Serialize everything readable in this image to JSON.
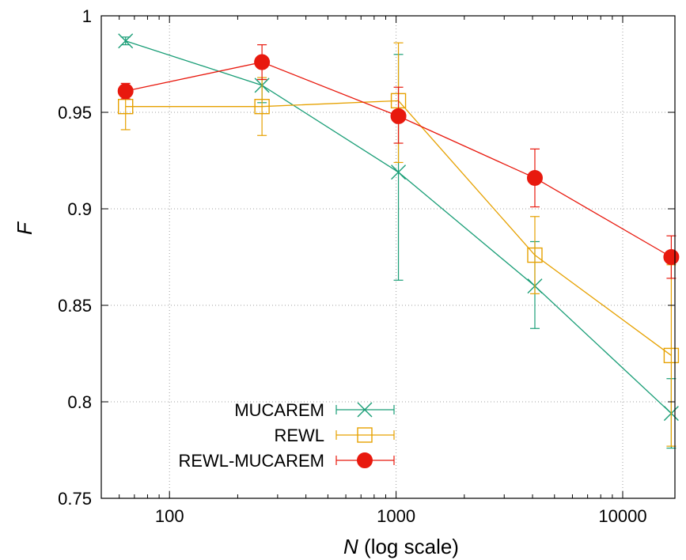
{
  "chart_data": {
    "type": "line",
    "title": "",
    "xlabel": "N",
    "xlabel_suffix": "(log scale)",
    "ylabel": "F",
    "x_scale": "log",
    "xlim": [
      50,
      17000
    ],
    "ylim": [
      0.75,
      1.0
    ],
    "x_ticks": [
      100,
      1000,
      10000
    ],
    "x_tick_labels": [
      "100",
      "1000",
      "10000"
    ],
    "y_ticks": [
      0.75,
      0.8,
      0.85,
      0.9,
      0.95,
      1.0
    ],
    "y_tick_labels": [
      "0.75",
      "0.8",
      "0.85",
      "0.9",
      "0.95",
      "1"
    ],
    "grid": true,
    "legend_position": "bottom-left",
    "x": [
      64,
      256,
      1024,
      4096,
      16384
    ],
    "series": [
      {
        "name": "MUCAREM",
        "color": "#1a9e77",
        "marker": "x",
        "values": [
          0.987,
          0.964,
          0.919,
          0.86,
          0.794
        ],
        "err_low": [
          0.985,
          0.955,
          0.863,
          0.838,
          0.776
        ],
        "err_high": [
          0.989,
          0.967,
          0.98,
          0.883,
          0.812
        ]
      },
      {
        "name": "REWL",
        "color": "#e6a100",
        "marker": "open-square",
        "values": [
          0.953,
          0.953,
          0.956,
          0.876,
          0.824
        ],
        "err_low": [
          0.941,
          0.938,
          0.924,
          0.856,
          0.777
        ],
        "err_high": [
          0.964,
          0.968,
          0.986,
          0.896,
          0.871
        ]
      },
      {
        "name": "REWL-MUCAREM",
        "color": "#e8190e",
        "marker": "filled-circle",
        "values": [
          0.961,
          0.976,
          0.948,
          0.916,
          0.875
        ],
        "err_low": [
          0.957,
          0.967,
          0.934,
          0.901,
          0.864
        ],
        "err_high": [
          0.965,
          0.985,
          0.963,
          0.931,
          0.886
        ]
      }
    ]
  }
}
